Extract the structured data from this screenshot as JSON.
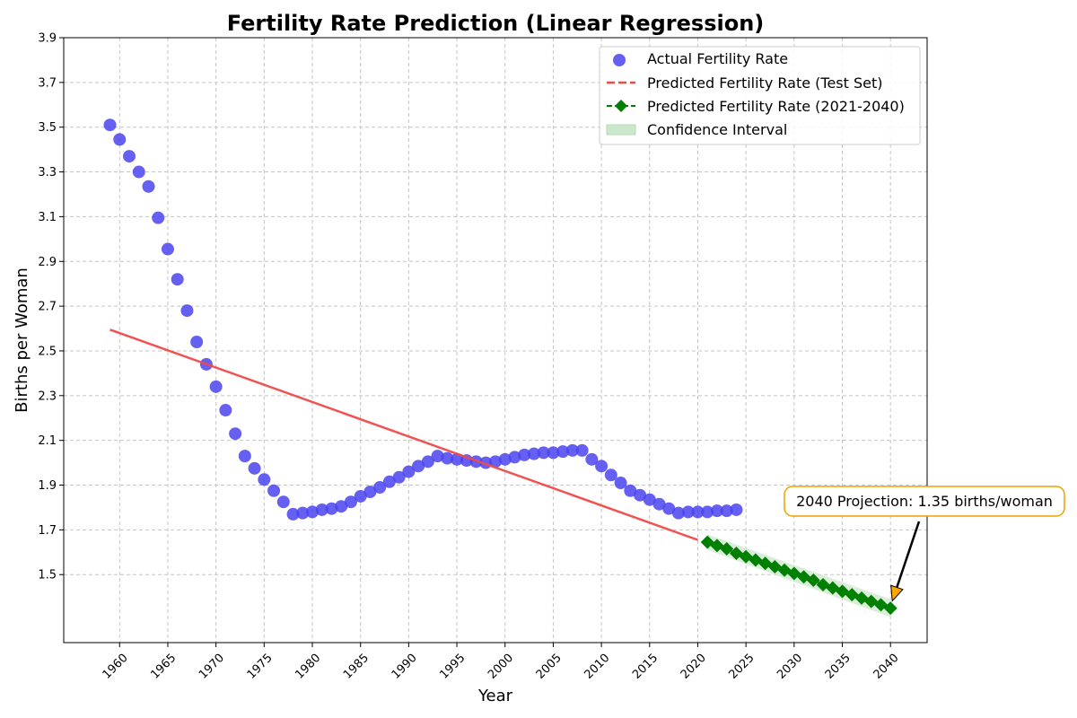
{
  "chart_data": {
    "type": "scatter",
    "title": "Fertility Rate Prediction (Linear Regression)",
    "xlabel": "Year",
    "ylabel": "Births per Woman",
    "xlim": [
      1954.2,
      2043.8
    ],
    "ylim": [
      1.196,
      3.9
    ],
    "x_ticks": [
      1960,
      1965,
      1970,
      1975,
      1980,
      1985,
      1990,
      1995,
      2000,
      2005,
      2010,
      2015,
      2020,
      2025,
      2030,
      2035,
      2040
    ],
    "y_ticks": [
      1.5,
      1.7,
      1.9,
      2.1,
      2.3,
      2.5,
      2.7,
      2.9,
      3.1,
      3.3,
      3.5,
      3.7,
      3.9
    ],
    "grid": true,
    "legend_position": "top-right",
    "colors": {
      "actual": "#4b44f0",
      "test": "#f04a4a",
      "future": "#008000",
      "ci": "#cce8cc",
      "annot_border": "#f0a000",
      "arrow": "#ffa500"
    },
    "series": [
      {
        "name": "Actual Fertility Rate",
        "kind": "scatter",
        "x": [
          1959,
          1960,
          1961,
          1962,
          1963,
          1964,
          1965,
          1966,
          1967,
          1968,
          1969,
          1970,
          1971,
          1972,
          1973,
          1974,
          1975,
          1976,
          1977,
          1978,
          1979,
          1980,
          1981,
          1982,
          1983,
          1984,
          1985,
          1986,
          1987,
          1988,
          1989,
          1990,
          1991,
          1992,
          1993,
          1994,
          1995,
          1996,
          1997,
          1998,
          1999,
          2000,
          2001,
          2002,
          2003,
          2004,
          2005,
          2006,
          2007,
          2008,
          2009,
          2010,
          2011,
          2012,
          2013,
          2014,
          2015,
          2016,
          2017,
          2018,
          2019,
          2020,
          2021,
          2022,
          2023,
          2024
        ],
        "y": [
          3.51,
          3.445,
          3.37,
          3.3,
          3.235,
          3.095,
          2.955,
          2.82,
          2.68,
          2.54,
          2.44,
          2.34,
          2.235,
          2.13,
          2.03,
          1.975,
          1.925,
          1.875,
          1.825,
          1.77,
          1.775,
          1.78,
          1.79,
          1.795,
          1.805,
          1.825,
          1.85,
          1.87,
          1.89,
          1.915,
          1.935,
          1.96,
          1.985,
          2.005,
          2.03,
          2.02,
          2.015,
          2.01,
          2.005,
          2.0,
          2.005,
          2.015,
          2.025,
          2.035,
          2.04,
          2.045,
          2.045,
          2.05,
          2.055,
          2.055,
          2.015,
          1.985,
          1.945,
          1.91,
          1.875,
          1.855,
          1.835,
          1.815,
          1.795,
          1.775,
          1.78,
          1.78,
          1.78,
          1.785,
          1.785,
          1.79
        ]
      },
      {
        "name": "Predicted Fertility Rate (Test Set)",
        "kind": "dashed-line",
        "x": [
          1959,
          2020
        ],
        "y": [
          2.595,
          1.655
        ]
      },
      {
        "name": "Predicted Fertility Rate (2021-2040)",
        "kind": "line-diamond",
        "x": [
          2021,
          2022,
          2023,
          2024,
          2025,
          2026,
          2027,
          2028,
          2029,
          2030,
          2031,
          2032,
          2033,
          2034,
          2035,
          2036,
          2037,
          2038,
          2039,
          2040
        ],
        "y": [
          1.645,
          1.63,
          1.615,
          1.595,
          1.58,
          1.565,
          1.55,
          1.535,
          1.52,
          1.505,
          1.49,
          1.475,
          1.455,
          1.44,
          1.425,
          1.41,
          1.395,
          1.38,
          1.365,
          1.35
        ]
      },
      {
        "name": "Confidence Interval",
        "kind": "band",
        "x": [
          2021,
          2040
        ],
        "lower": [
          1.61,
          1.31
        ],
        "upper": [
          1.68,
          1.39
        ]
      }
    ],
    "annotation": {
      "text": "2040 Projection: 1.35 births/woman",
      "x": 2040,
      "y": 1.35
    }
  }
}
